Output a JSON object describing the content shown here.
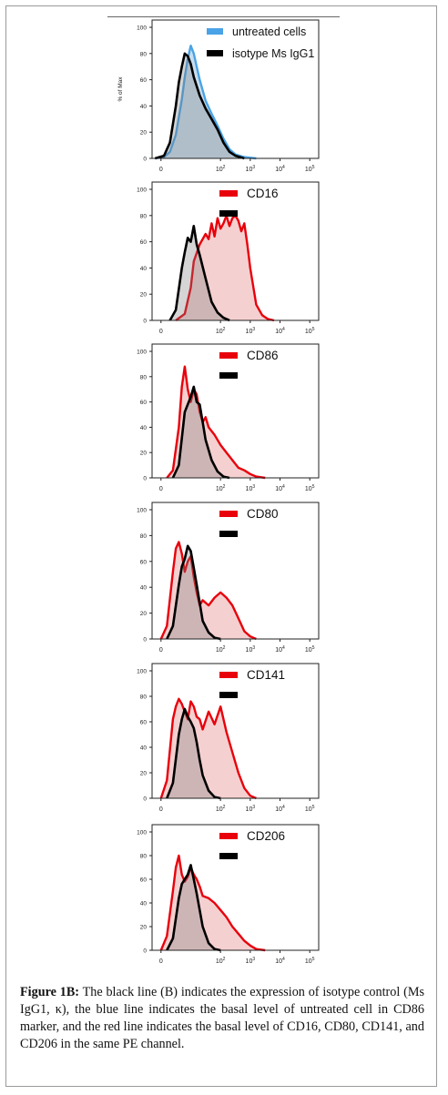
{
  "figure": {
    "caption_label": "Figure 1B:",
    "caption_text": "The black line (B) indicates the expression of isotype control (Ms IgG1, κ), the blue line indicates the basal level of untreated cell in CD86 marker, and the red line indicates the basal level of CD16, CD80, CD141, and CD206 in the same PE channel."
  },
  "colors": {
    "isotype": "#000000",
    "untreated": "#4aa3e6",
    "marker": "#e8000b",
    "fill_red": "#f2c4c4",
    "fill_blue": "#bcd6ea"
  },
  "chart_data": [
    {
      "type": "area",
      "panel": "untreated",
      "ylabel": "% of Max",
      "yticks": [
        "0",
        "20",
        "40",
        "60",
        "80",
        "100"
      ],
      "xticks": [
        "0",
        "10^2",
        "10^3",
        "10^4",
        "10^5"
      ],
      "ylim": [
        0,
        100
      ],
      "legend": [
        "untreated cells",
        "isotype Ms IgG1"
      ],
      "series": [
        {
          "name": "untreated cells",
          "color": "#4aa3e6",
          "x": [
            -0.2,
            0.1,
            0.3,
            0.5,
            0.7,
            0.8,
            0.9,
            1.0,
            1.1,
            1.2,
            1.3,
            1.5,
            1.7,
            1.9,
            2.1,
            2.3,
            2.5,
            2.8,
            3.2
          ],
          "y": [
            0,
            1,
            5,
            18,
            45,
            62,
            76,
            86,
            80,
            70,
            60,
            44,
            34,
            25,
            15,
            7,
            3,
            1,
            0
          ]
        },
        {
          "name": "isotype Ms IgG1",
          "color": "#000000",
          "x": [
            -0.2,
            0.1,
            0.3,
            0.5,
            0.6,
            0.7,
            0.8,
            0.9,
            1.0,
            1.1,
            1.3,
            1.5,
            1.7,
            1.9,
            2.1,
            2.3,
            2.5,
            2.8
          ],
          "y": [
            0,
            2,
            12,
            40,
            58,
            70,
            80,
            78,
            72,
            62,
            48,
            38,
            30,
            22,
            12,
            5,
            2,
            0
          ]
        }
      ]
    },
    {
      "type": "area",
      "panel": "CD16",
      "yticks": [
        "0",
        "20",
        "40",
        "60",
        "80",
        "100"
      ],
      "xticks": [
        "0",
        "10^2",
        "10^3",
        "10^4",
        "10^5"
      ],
      "ylim": [
        0,
        100
      ],
      "legend": [
        "CD16",
        ""
      ],
      "series": [
        {
          "name": "CD16",
          "color": "#e8000b",
          "x": [
            0.5,
            0.8,
            1.0,
            1.1,
            1.3,
            1.5,
            1.6,
            1.7,
            1.8,
            1.9,
            2.0,
            2.1,
            2.2,
            2.3,
            2.4,
            2.5,
            2.6,
            2.7,
            2.8,
            2.9,
            3.0,
            3.1,
            3.2,
            3.4,
            3.6,
            3.8
          ],
          "y": [
            0,
            5,
            25,
            45,
            58,
            66,
            62,
            74,
            64,
            78,
            70,
            74,
            80,
            72,
            78,
            80,
            76,
            68,
            74,
            58,
            40,
            26,
            12,
            4,
            1,
            0
          ]
        },
        {
          "name": "",
          "color": "#000000",
          "x": [
            0.3,
            0.5,
            0.7,
            0.8,
            0.9,
            1.0,
            1.1,
            1.2,
            1.3,
            1.5,
            1.7,
            1.9,
            2.1,
            2.3
          ],
          "y": [
            0,
            8,
            40,
            52,
            63,
            60,
            72,
            58,
            50,
            32,
            14,
            6,
            2,
            0
          ]
        }
      ]
    },
    {
      "type": "area",
      "panel": "CD86",
      "yticks": [
        "0",
        "20",
        "40",
        "60",
        "80",
        "100"
      ],
      "xticks": [
        "0",
        "10^2",
        "10^3",
        "10^4",
        "10^5"
      ],
      "ylim": [
        0,
        100
      ],
      "legend": [
        "CD86",
        ""
      ],
      "series": [
        {
          "name": "CD86",
          "color": "#e8000b",
          "x": [
            0.2,
            0.4,
            0.6,
            0.7,
            0.8,
            0.9,
            1.0,
            1.1,
            1.2,
            1.3,
            1.4,
            1.5,
            1.6,
            1.8,
            2.0,
            2.2,
            2.4,
            2.6,
            2.8,
            3.0,
            3.2,
            3.5
          ],
          "y": [
            0,
            6,
            40,
            72,
            88,
            70,
            60,
            70,
            66,
            52,
            44,
            48,
            40,
            34,
            26,
            20,
            14,
            8,
            6,
            3,
            1,
            0
          ]
        },
        {
          "name": "",
          "color": "#000000",
          "x": [
            0.4,
            0.6,
            0.8,
            1.0,
            1.1,
            1.2,
            1.3,
            1.4,
            1.5,
            1.7,
            1.9,
            2.1,
            2.3
          ],
          "y": [
            0,
            10,
            52,
            64,
            72,
            60,
            58,
            44,
            30,
            14,
            5,
            1,
            0
          ]
        }
      ]
    },
    {
      "type": "area",
      "panel": "CD80",
      "yticks": [
        "0",
        "20",
        "40",
        "60",
        "80",
        "100"
      ],
      "xticks": [
        "0",
        "10^2",
        "10^3",
        "10^4",
        "10^5"
      ],
      "ylim": [
        0,
        100
      ],
      "legend": [
        "CD80",
        ""
      ],
      "series": [
        {
          "name": "CD80",
          "color": "#e8000b",
          "x": [
            0.0,
            0.2,
            0.4,
            0.5,
            0.6,
            0.7,
            0.8,
            0.9,
            1.0,
            1.1,
            1.2,
            1.3,
            1.4,
            1.6,
            1.8,
            2.0,
            2.2,
            2.4,
            2.6,
            2.8,
            3.0,
            3.2
          ],
          "y": [
            0,
            10,
            52,
            70,
            75,
            66,
            52,
            60,
            64,
            48,
            36,
            26,
            30,
            26,
            32,
            36,
            32,
            26,
            16,
            6,
            2,
            0
          ]
        },
        {
          "name": "",
          "color": "#000000",
          "x": [
            0.2,
            0.4,
            0.6,
            0.7,
            0.8,
            0.9,
            1.0,
            1.1,
            1.2,
            1.3,
            1.4,
            1.6,
            1.8,
            2.0
          ],
          "y": [
            0,
            10,
            42,
            56,
            62,
            72,
            68,
            55,
            42,
            28,
            14,
            5,
            1,
            0
          ]
        }
      ]
    },
    {
      "type": "area",
      "panel": "CD141",
      "yticks": [
        "0",
        "20",
        "40",
        "60",
        "80",
        "100"
      ],
      "xticks": [
        "0",
        "10^2",
        "10^3",
        "10^4",
        "10^5"
      ],
      "ylim": [
        0,
        100
      ],
      "legend": [
        "CD141",
        ""
      ],
      "series": [
        {
          "name": "CD141",
          "color": "#e8000b",
          "x": [
            0.0,
            0.2,
            0.4,
            0.5,
            0.6,
            0.7,
            0.8,
            0.9,
            1.0,
            1.1,
            1.2,
            1.3,
            1.4,
            1.6,
            1.8,
            2.0,
            2.2,
            2.4,
            2.6,
            2.8,
            3.0,
            3.2
          ],
          "y": [
            0,
            14,
            62,
            72,
            78,
            74,
            68,
            62,
            76,
            72,
            64,
            62,
            54,
            68,
            58,
            72,
            52,
            36,
            20,
            8,
            2,
            0
          ]
        },
        {
          "name": "",
          "color": "#000000",
          "x": [
            0.2,
            0.4,
            0.6,
            0.7,
            0.8,
            0.9,
            1.0,
            1.1,
            1.2,
            1.3,
            1.4,
            1.6,
            1.8,
            2.0
          ],
          "y": [
            0,
            12,
            50,
            62,
            70,
            64,
            60,
            55,
            44,
            30,
            18,
            6,
            1,
            0
          ]
        }
      ]
    },
    {
      "type": "area",
      "panel": "CD206",
      "yticks": [
        "0",
        "20",
        "40",
        "60",
        "80",
        "100"
      ],
      "xticks": [
        "0",
        "10^2",
        "10^3",
        "10^4",
        "10^5"
      ],
      "ylim": [
        0,
        100
      ],
      "legend": [
        "CD206",
        ""
      ],
      "series": [
        {
          "name": "CD206",
          "color": "#e8000b",
          "x": [
            0.0,
            0.2,
            0.4,
            0.5,
            0.6,
            0.7,
            0.8,
            0.9,
            1.0,
            1.1,
            1.2,
            1.3,
            1.4,
            1.6,
            1.8,
            2.0,
            2.2,
            2.4,
            2.6,
            2.8,
            3.0,
            3.2,
            3.5
          ],
          "y": [
            0,
            12,
            50,
            70,
            80,
            64,
            58,
            62,
            70,
            64,
            60,
            54,
            46,
            44,
            40,
            34,
            28,
            20,
            14,
            8,
            4,
            1,
            0
          ]
        },
        {
          "name": "",
          "color": "#000000",
          "x": [
            0.2,
            0.4,
            0.6,
            0.7,
            0.8,
            0.9,
            1.0,
            1.1,
            1.2,
            1.3,
            1.4,
            1.6,
            1.8,
            2.0
          ],
          "y": [
            0,
            10,
            44,
            56,
            60,
            64,
            72,
            60,
            48,
            34,
            20,
            6,
            1,
            0
          ]
        }
      ]
    }
  ]
}
